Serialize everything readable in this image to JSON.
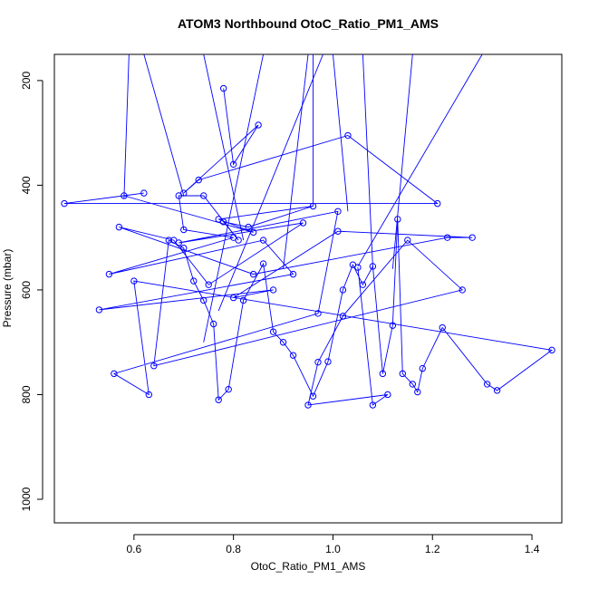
{
  "chart_data": {
    "type": "line",
    "title": "ATOM3 Northbound OtoC_Ratio_PM1_AMS",
    "xlabel": "OtoC_Ratio_PM1_AMS",
    "ylabel": "Pressure (mbar)",
    "xlim": [
      0.44,
      1.46
    ],
    "ylim": [
      1045,
      150
    ],
    "y_reversed": true,
    "x_ticks": [
      0.6,
      0.8,
      1.0,
      1.2,
      1.4
    ],
    "y_ticks": [
      200,
      400,
      600,
      800,
      1000
    ],
    "x_tick_labels": [
      "0.6",
      "0.8",
      "1.0",
      "1.2",
      "1.4"
    ],
    "y_tick_labels": [
      "200",
      "400",
      "600",
      "800",
      "1000"
    ],
    "grid": false,
    "legend": "none",
    "series_color": "#0000ff",
    "marker": "open-circle",
    "series": [
      {
        "x": [
          0.78,
          0.8,
          0.85,
          0.7,
          0.73,
          1.03,
          1.21,
          0.46,
          0.62,
          0.58,
          0.84,
          0.77,
          0.96,
          0.83,
          0.78,
          0.81,
          0.74,
          0.69,
          0.7,
          0.8,
          0.55,
          0.86,
          0.92,
          0.53,
          0.88,
          0.8,
          1.01,
          1.28,
          1.23,
          0.84,
          0.57,
          0.68,
          0.75,
          0.94,
          0.69,
          1.01,
          0.97,
          0.56,
          0.63,
          0.6,
          1.44,
          1.33,
          1.31,
          1.22,
          1.18,
          1.17,
          1.16,
          1.14,
          1.13,
          1.12,
          1.1,
          1.08,
          1.06,
          1.04,
          1.02,
          0.99,
          0.96,
          0.92,
          0.9,
          0.88,
          0.86,
          0.82,
          0.79,
          0.77,
          0.76,
          0.74,
          0.72,
          0.7,
          0.67,
          0.64,
          1.26,
          1.15,
          1.02,
          0.97,
          0.95,
          1.11,
          1.08,
          1.05
        ],
        "y": [
          215,
          360,
          285,
          415,
          390,
          305,
          435,
          435,
          415,
          420,
          490,
          465,
          440,
          480,
          470,
          505,
          420,
          420,
          485,
          500,
          570,
          505,
          570,
          638,
          600,
          615,
          488,
          500,
          500,
          570,
          480,
          505,
          590,
          472,
          510,
          450,
          645,
          760,
          800,
          583,
          715,
          792,
          780,
          672,
          750,
          795,
          780,
          760,
          465,
          668,
          760,
          555,
          590,
          552,
          600,
          737,
          803,
          725,
          700,
          680,
          550,
          620,
          790,
          810,
          665,
          620,
          583,
          520,
          505,
          745,
          600,
          505,
          650,
          738,
          820,
          800,
          820,
          557
        ]
      }
    ]
  }
}
